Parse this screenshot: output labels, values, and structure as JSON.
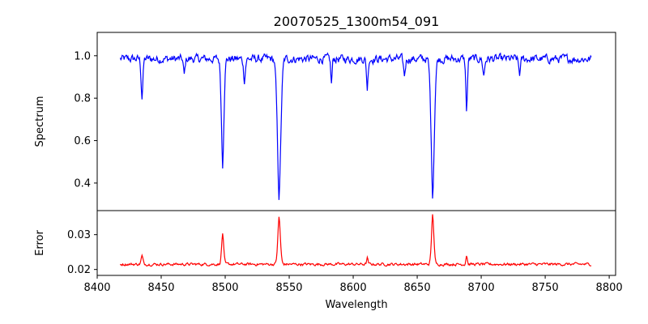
{
  "chart_data": {
    "type": "line",
    "title": "20070525_1300m54_091",
    "xlabel": "Wavelength",
    "xlim": [
      8400,
      8805
    ],
    "x_ticks": [
      "8400",
      "8450",
      "8500",
      "8550",
      "8600",
      "8650",
      "8700",
      "8750",
      "8800"
    ],
    "x_tick_values": [
      8400,
      8450,
      8500,
      8550,
      8600,
      8650,
      8700,
      8750,
      8800
    ],
    "grid": false,
    "panels": [
      {
        "id": "spectrum",
        "ylabel": "Spectrum",
        "ylim": [
          0.27,
          1.11
        ],
        "y_ticks": [
          "0.4",
          "0.6",
          "0.8",
          "1.0"
        ],
        "y_tick_values": [
          0.4,
          0.6,
          0.8,
          1.0
        ],
        "color": "#0000ff",
        "baseline": 0.985,
        "noise": 0.035,
        "range": [
          8418,
          8786
        ],
        "features": [
          {
            "x": 8498.0,
            "depth": 0.5,
            "width": 1.1
          },
          {
            "x": 8542.1,
            "depth": 0.66,
            "width": 1.5
          },
          {
            "x": 8662.1,
            "depth": 0.65,
            "width": 1.4
          },
          {
            "x": 8435.0,
            "depth": 0.18,
            "width": 0.8
          },
          {
            "x": 8688.6,
            "depth": 0.25,
            "width": 0.7
          },
          {
            "x": 8583.0,
            "depth": 0.12,
            "width": 0.6
          },
          {
            "x": 8611.0,
            "depth": 0.14,
            "width": 0.7
          },
          {
            "x": 8468.0,
            "depth": 0.08,
            "width": 0.7
          },
          {
            "x": 8515.0,
            "depth": 0.1,
            "width": 0.8
          },
          {
            "x": 8640.0,
            "depth": 0.08,
            "width": 0.8
          },
          {
            "x": 8702.0,
            "depth": 0.08,
            "width": 0.8
          },
          {
            "x": 8730.0,
            "depth": 0.07,
            "width": 0.8
          }
        ]
      },
      {
        "id": "error",
        "ylabel": "Error",
        "ylim": [
          0.0183,
          0.0369
        ],
        "y_ticks": [
          "0.02",
          "0.03"
        ],
        "y_tick_values": [
          0.02,
          0.03
        ],
        "color": "#ff0000",
        "baseline": 0.0215,
        "noise": 0.0007,
        "range": [
          8418,
          8786
        ],
        "features": [
          {
            "x": 8498.0,
            "depth": -0.009,
            "width": 0.9
          },
          {
            "x": 8542.1,
            "depth": -0.0138,
            "width": 1.1
          },
          {
            "x": 8662.1,
            "depth": -0.0148,
            "width": 1.0
          },
          {
            "x": 8435.0,
            "depth": -0.0024,
            "width": 0.8
          },
          {
            "x": 8688.6,
            "depth": -0.0028,
            "width": 0.6
          },
          {
            "x": 8611.0,
            "depth": -0.0018,
            "width": 0.6
          }
        ]
      }
    ]
  }
}
